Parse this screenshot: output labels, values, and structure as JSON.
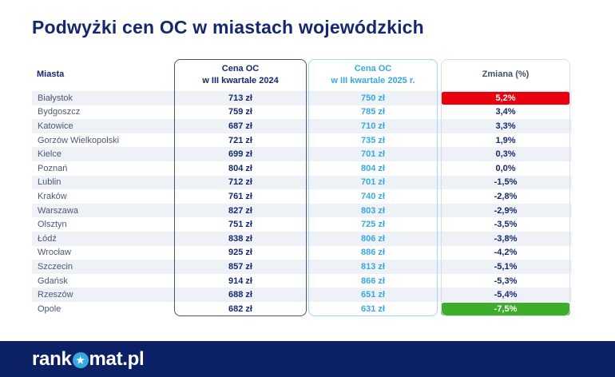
{
  "chart_data": {
    "type": "table",
    "title": "Podwyżki cen OC w miastach wojewódzkich",
    "columns": [
      "Miasta",
      "Cena OC\nw III kwartale 2024",
      "Cena OC\nw III kwartale 2025 r.",
      "Zmiana (%)"
    ],
    "price_2024_values": [
      713,
      759,
      687,
      721,
      699,
      804,
      712,
      761,
      827,
      751,
      838,
      925,
      857,
      914,
      688,
      682
    ],
    "price_2025_values": [
      750,
      785,
      710,
      735,
      701,
      804,
      701,
      740,
      803,
      725,
      806,
      886,
      813,
      866,
      651,
      631
    ],
    "change_pct_values": [
      5.2,
      3.4,
      3.3,
      1.9,
      0.3,
      0.0,
      -1.5,
      -2.8,
      -2.9,
      -3.5,
      -3.8,
      -4.2,
      -5.1,
      -5.3,
      -5.4,
      -7.5
    ],
    "rows": [
      {
        "city": "Białystok",
        "price_2024": "713 zł",
        "price_2025": "750 zł",
        "change": "5,2%",
        "highlight": "red"
      },
      {
        "city": "Bydgoszcz",
        "price_2024": "759 zł",
        "price_2025": "785 zł",
        "change": "3,4%",
        "highlight": ""
      },
      {
        "city": "Katowice",
        "price_2024": "687 zł",
        "price_2025": "710 zł",
        "change": "3,3%",
        "highlight": ""
      },
      {
        "city": "Gorzów Wielkopolski",
        "price_2024": "721 zł",
        "price_2025": "735 zł",
        "change": "1,9%",
        "highlight": ""
      },
      {
        "city": "Kielce",
        "price_2024": "699 zł",
        "price_2025": "701 zł",
        "change": "0,3%",
        "highlight": ""
      },
      {
        "city": "Poznań",
        "price_2024": "804 zł",
        "price_2025": "804 zł",
        "change": "0,0%",
        "highlight": ""
      },
      {
        "city": "Lublin",
        "price_2024": "712 zł",
        "price_2025": "701 zł",
        "change": "-1,5%",
        "highlight": ""
      },
      {
        "city": "Kraków",
        "price_2024": "761 zł",
        "price_2025": "740 zł",
        "change": "-2,8%",
        "highlight": ""
      },
      {
        "city": "Warszawa",
        "price_2024": "827 zł",
        "price_2025": "803 zł",
        "change": "-2,9%",
        "highlight": ""
      },
      {
        "city": "Olsztyn",
        "price_2024": "751 zł",
        "price_2025": "725 zł",
        "change": "-3,5%",
        "highlight": ""
      },
      {
        "city": "Łódź",
        "price_2024": "838 zł",
        "price_2025": "806 zł",
        "change": "-3,8%",
        "highlight": ""
      },
      {
        "city": "Wrocław",
        "price_2024": "925 zł",
        "price_2025": "886 zł",
        "change": "-4,2%",
        "highlight": ""
      },
      {
        "city": "Szczecin",
        "price_2024": "857 zł",
        "price_2025": "813 zł",
        "change": "-5,1%",
        "highlight": ""
      },
      {
        "city": "Gdańsk",
        "price_2024": "914 zł",
        "price_2025": "866 zł",
        "change": "-5,3%",
        "highlight": ""
      },
      {
        "city": "Rzeszów",
        "price_2024": "688 zł",
        "price_2025": "651 zł",
        "change": "-5,4%",
        "highlight": ""
      },
      {
        "city": "Opole",
        "price_2024": "682 zł",
        "price_2025": "631 zł",
        "change": "-7,5%",
        "highlight": "green"
      }
    ]
  },
  "footer": {
    "logo_prefix": "rank",
    "logo_suffix": "mat.pl",
    "logo_star_glyph": "★"
  },
  "colors": {
    "navy": "#15286d",
    "light_blue": "#36a9e1",
    "increase_red": "#e8000f",
    "decrease_green": "#3dad2b",
    "row_stripe": "#eef1f6",
    "footer_navy": "#0b2065"
  }
}
